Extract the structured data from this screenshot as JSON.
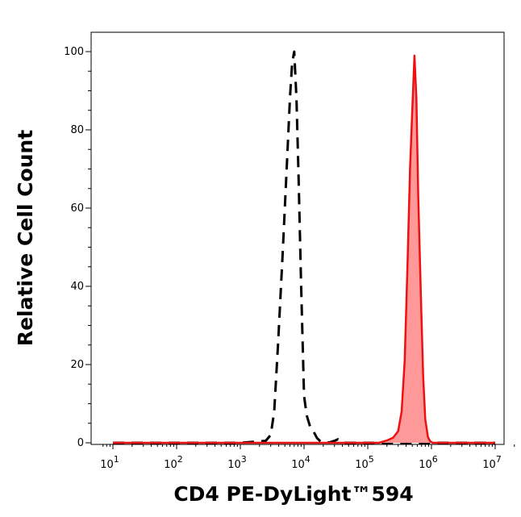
{
  "chart_data": {
    "type": "area",
    "title": "",
    "xlabel": "CD4 PE-DyLight™594",
    "ylabel": "Relative Cell Count",
    "xscale": "log",
    "xlim": [
      10,
      10000000
    ],
    "ylim": [
      0,
      100
    ],
    "grid": false,
    "x_ticks": [
      {
        "base": "10",
        "exp": "1",
        "value": 10
      },
      {
        "base": "10",
        "exp": "2",
        "value": 100
      },
      {
        "base": "10",
        "exp": "3",
        "value": 1000
      },
      {
        "base": "10",
        "exp": "4",
        "value": 10000
      },
      {
        "base": "10",
        "exp": "5",
        "value": 100000
      },
      {
        "base": "10",
        "exp": "6",
        "value": 1000000
      },
      {
        "base": "10",
        "exp": "7",
        "value": 10000000
      }
    ],
    "y_ticks": [
      "0",
      "20",
      "40",
      "60",
      "80",
      "100"
    ],
    "series": [
      {
        "style": "dashed-black",
        "color": "#000000",
        "x": [
          10,
          1000,
          2500,
          3000,
          3400,
          3900,
          4600,
          5400,
          6000,
          6500,
          7000,
          7600,
          8200,
          9000,
          10000,
          11000,
          12500,
          14000,
          16000,
          18000,
          21000,
          25000,
          30000,
          34000,
          38000,
          45000,
          60000,
          10000000
        ],
        "y": [
          0,
          0,
          0.5,
          2,
          8,
          25,
          48,
          72,
          88,
          97,
          100,
          88,
          68,
          40,
          12,
          7,
          4,
          3,
          1.2,
          0.4,
          0.2,
          0.1,
          0.5,
          0.9,
          0.3,
          0,
          0,
          0
        ]
      },
      {
        "style": "filled-red",
        "color": "#ee1111",
        "fill": "#ff9999",
        "x": [
          10,
          150000,
          200000,
          250000,
          300000,
          340000,
          380000,
          420000,
          460000,
          500000,
          540000,
          580000,
          620000,
          680000,
          740000,
          800000,
          880000,
          950000,
          1050000,
          10000000
        ],
        "y": [
          0,
          0,
          0.6,
          1.3,
          3,
          8,
          21,
          45,
          70,
          85,
          99,
          88,
          63,
          38,
          17,
          6,
          1.5,
          0.4,
          0,
          0
        ]
      }
    ]
  }
}
